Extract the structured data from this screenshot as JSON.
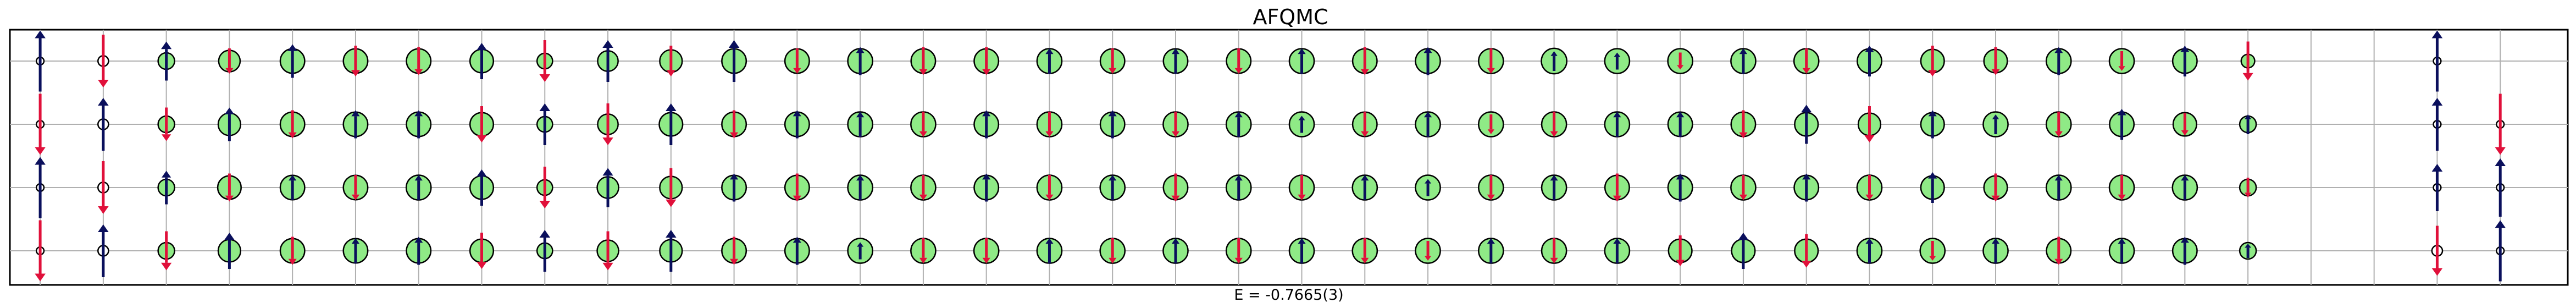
{
  "title": "AFQMC",
  "energy_label": "E = -0.7665(3)",
  "colors": {
    "up": "#0a0f5c",
    "down": "#e0103a",
    "charge_fill": "#8fea86",
    "grid": "#b0b0b0",
    "frame": "#000000"
  },
  "chart_data": {
    "type": "lattice",
    "rows": 4,
    "cols": 40,
    "grid": true,
    "sites": [
      [
        {
          "s": 0.95,
          "c": 0.05
        },
        {
          "s": -0.8,
          "c": 0.2
        },
        {
          "s": 0.55,
          "c": 0.5
        },
        {
          "s": -0.3,
          "c": 0.75
        },
        {
          "s": 0.45,
          "c": 0.9
        },
        {
          "s": -0.4,
          "c": 0.9
        },
        {
          "s": -0.35,
          "c": 0.9
        },
        {
          "s": 0.5,
          "c": 0.85
        },
        {
          "s": -0.6,
          "c": 0.45
        },
        {
          "s": 0.6,
          "c": 0.7
        },
        {
          "s": -0.4,
          "c": 0.8
        },
        {
          "s": 0.6,
          "c": 0.9
        },
        {
          "s": -0.3,
          "c": 0.9
        },
        {
          "s": 0.35,
          "c": 0.92
        },
        {
          "s": -0.35,
          "c": 0.9
        },
        {
          "s": -0.35,
          "c": 0.9
        },
        {
          "s": 0.3,
          "c": 0.92
        },
        {
          "s": -0.3,
          "c": 0.9
        },
        {
          "s": 0.3,
          "c": 0.9
        },
        {
          "s": -0.3,
          "c": 0.9
        },
        {
          "s": 0.3,
          "c": 0.92
        },
        {
          "s": -0.35,
          "c": 0.9
        },
        {
          "s": 0.35,
          "c": 0.92
        },
        {
          "s": -0.3,
          "c": 0.92
        },
        {
          "s": 0.2,
          "c": 0.95
        },
        {
          "s": 0.15,
          "c": 0.92
        },
        {
          "s": -0.15,
          "c": 0.92
        },
        {
          "s": 0.3,
          "c": 0.92
        },
        {
          "s": -0.3,
          "c": 0.92
        },
        {
          "s": 0.4,
          "c": 0.9
        },
        {
          "s": -0.4,
          "c": 0.85
        },
        {
          "s": -0.35,
          "c": 0.85
        },
        {
          "s": 0.35,
          "c": 0.92
        },
        {
          "s": -0.2,
          "c": 0.92
        },
        {
          "s": 0.4,
          "c": 0.9
        },
        {
          "s": -0.55,
          "c": 0.35
        },
        {
          "s": 0,
          "c": 0
        },
        {
          "s": 0,
          "c": 0
        },
        {
          "s": 0.95,
          "c": 0.05
        },
        {
          "s": 0,
          "c": 0
        }
      ],
      [
        {
          "s": -0.95,
          "c": 0.05
        },
        {
          "s": 0.8,
          "c": 0.2
        },
        {
          "s": -0.45,
          "c": 0.5
        },
        {
          "s": 0.45,
          "c": 0.8
        },
        {
          "s": -0.35,
          "c": 0.9
        },
        {
          "s": 0.35,
          "c": 0.9
        },
        {
          "s": 0.35,
          "c": 0.9
        },
        {
          "s": -0.5,
          "c": 0.85
        },
        {
          "s": 0.6,
          "c": 0.45
        },
        {
          "s": -0.6,
          "c": 0.7
        },
        {
          "s": 0.6,
          "c": 0.85
        },
        {
          "s": -0.35,
          "c": 0.9
        },
        {
          "s": 0.35,
          "c": 0.9
        },
        {
          "s": 0.3,
          "c": 0.92
        },
        {
          "s": -0.3,
          "c": 0.92
        },
        {
          "s": 0.35,
          "c": 0.9
        },
        {
          "s": -0.3,
          "c": 0.92
        },
        {
          "s": 0.35,
          "c": 0.9
        },
        {
          "s": -0.3,
          "c": 0.92
        },
        {
          "s": 0.3,
          "c": 0.92
        },
        {
          "s": 0.15,
          "c": 0.92
        },
        {
          "s": -0.3,
          "c": 0.9
        },
        {
          "s": 0.3,
          "c": 0.92
        },
        {
          "s": -0.2,
          "c": 0.92
        },
        {
          "s": -0.3,
          "c": 0.92
        },
        {
          "s": 0.3,
          "c": 0.92
        },
        {
          "s": 0.3,
          "c": 0.9
        },
        {
          "s": -0.35,
          "c": 0.9
        },
        {
          "s": 0.55,
          "c": 0.85
        },
        {
          "s": -0.5,
          "c": 0.8
        },
        {
          "s": 0.35,
          "c": 0.85
        },
        {
          "s": 0.2,
          "c": 0.92
        },
        {
          "s": -0.3,
          "c": 0.92
        },
        {
          "s": 0.4,
          "c": 0.9
        },
        {
          "s": -0.25,
          "c": 0.85
        },
        {
          "s": 0.2,
          "c": 0.5
        },
        {
          "s": 0,
          "c": 0
        },
        {
          "s": 0,
          "c": 0
        },
        {
          "s": 0.8,
          "c": 0.05
        },
        {
          "s": -0.95,
          "c": 0.05
        }
      ],
      [
        {
          "s": 0.95,
          "c": 0.05
        },
        {
          "s": -0.8,
          "c": 0.2
        },
        {
          "s": 0.45,
          "c": 0.5
        },
        {
          "s": -0.35,
          "c": 0.85
        },
        {
          "s": 0.3,
          "c": 0.9
        },
        {
          "s": -0.3,
          "c": 0.9
        },
        {
          "s": 0.3,
          "c": 0.92
        },
        {
          "s": 0.5,
          "c": 0.85
        },
        {
          "s": -0.6,
          "c": 0.45
        },
        {
          "s": 0.55,
          "c": 0.75
        },
        {
          "s": -0.55,
          "c": 0.8
        },
        {
          "s": 0.35,
          "c": 0.9
        },
        {
          "s": -0.35,
          "c": 0.9
        },
        {
          "s": 0.3,
          "c": 0.92
        },
        {
          "s": -0.3,
          "c": 0.92
        },
        {
          "s": 0.35,
          "c": 0.9
        },
        {
          "s": -0.3,
          "c": 0.92
        },
        {
          "s": 0.3,
          "c": 0.92
        },
        {
          "s": -0.35,
          "c": 0.9
        },
        {
          "s": 0.3,
          "c": 0.92
        },
        {
          "s": -0.3,
          "c": 0.92
        },
        {
          "s": 0.3,
          "c": 0.92
        },
        {
          "s": 0.15,
          "c": 0.92
        },
        {
          "s": -0.3,
          "c": 0.92
        },
        {
          "s": 0.3,
          "c": 0.92
        },
        {
          "s": -0.35,
          "c": 0.9
        },
        {
          "s": 0.35,
          "c": 0.9
        },
        {
          "s": -0.3,
          "c": 0.92
        },
        {
          "s": 0.35,
          "c": 0.9
        },
        {
          "s": -0.3,
          "c": 0.92
        },
        {
          "s": 0.4,
          "c": 0.85
        },
        {
          "s": -0.35,
          "c": 0.85
        },
        {
          "s": 0.3,
          "c": 0.92
        },
        {
          "s": -0.3,
          "c": 0.92
        },
        {
          "s": 0.3,
          "c": 0.92
        },
        {
          "s": -0.2,
          "c": 0.5
        },
        {
          "s": 0,
          "c": 0
        },
        {
          "s": 0,
          "c": 0
        },
        {
          "s": 0.7,
          "c": 0.05
        },
        {
          "s": 0.9,
          "c": 0.05
        }
      ],
      [
        {
          "s": -0.95,
          "c": 0.05
        },
        {
          "s": 0.8,
          "c": 0.2
        },
        {
          "s": -0.55,
          "c": 0.5
        },
        {
          "s": 0.5,
          "c": 0.8
        },
        {
          "s": -0.35,
          "c": 0.9
        },
        {
          "s": 0.3,
          "c": 0.9
        },
        {
          "s": 0.35,
          "c": 0.9
        },
        {
          "s": -0.5,
          "c": 0.85
        },
        {
          "s": 0.6,
          "c": 0.45
        },
        {
          "s": -0.55,
          "c": 0.75
        },
        {
          "s": 0.6,
          "c": 0.8
        },
        {
          "s": -0.35,
          "c": 0.9
        },
        {
          "s": 0.35,
          "c": 0.9
        },
        {
          "s": 0.15,
          "c": 0.92
        },
        {
          "s": -0.3,
          "c": 0.92
        },
        {
          "s": -0.3,
          "c": 0.92
        },
        {
          "s": 0.3,
          "c": 0.92
        },
        {
          "s": -0.3,
          "c": 0.92
        },
        {
          "s": 0.3,
          "c": 0.92
        },
        {
          "s": -0.3,
          "c": 0.92
        },
        {
          "s": 0.3,
          "c": 0.92
        },
        {
          "s": -0.3,
          "c": 0.92
        },
        {
          "s": -0.2,
          "c": 0.92
        },
        {
          "s": 0.3,
          "c": 0.92
        },
        {
          "s": -0.3,
          "c": 0.92
        },
        {
          "s": 0.3,
          "c": 0.92
        },
        {
          "s": -0.4,
          "c": 0.85
        },
        {
          "s": 0.5,
          "c": 0.85
        },
        {
          "s": -0.45,
          "c": 0.85
        },
        {
          "s": 0.3,
          "c": 0.92
        },
        {
          "s": -0.2,
          "c": 0.92
        },
        {
          "s": 0.3,
          "c": 0.92
        },
        {
          "s": -0.35,
          "c": 0.9
        },
        {
          "s": 0.3,
          "c": 0.92
        },
        {
          "s": 0.35,
          "c": 0.9
        },
        {
          "s": 0.1,
          "c": 0.5
        },
        {
          "s": 0,
          "c": 0
        },
        {
          "s": 0,
          "c": 0
        },
        {
          "s": -0.75,
          "c": 0.2
        },
        {
          "s": 0.95,
          "c": 0.05
        }
      ]
    ]
  }
}
